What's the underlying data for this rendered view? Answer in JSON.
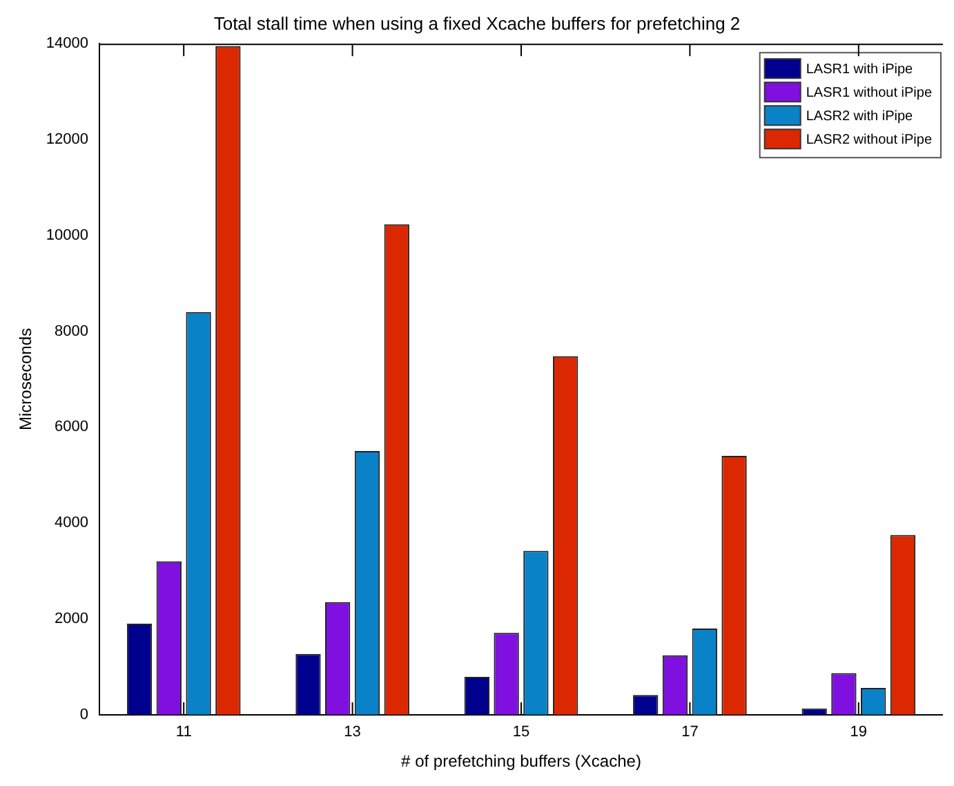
{
  "chart_data": {
    "type": "bar",
    "title": "Total stall time when using a fixed Xcache buffers for prefetching 2",
    "xlabel": "# of prefetching buffers (Xcache)",
    "ylabel": "Microseconds",
    "categories": [
      "11",
      "13",
      "15",
      "17",
      "19"
    ],
    "series": [
      {
        "name": "LASR1 with iPipe",
        "color": "#00008f",
        "values": [
          1900,
          1270,
          790,
          410,
          130
        ]
      },
      {
        "name": "LASR1 without iPipe",
        "color": "#7f10e0",
        "values": [
          3200,
          2350,
          1710,
          1240,
          870
        ]
      },
      {
        "name": "LASR2 with iPipe",
        "color": "#0a82c8",
        "values": [
          8400,
          5500,
          3420,
          1800,
          560
        ]
      },
      {
        "name": "LASR2 without iPipe",
        "color": "#dc2800",
        "values": [
          13950,
          10230,
          7480,
          5400,
          3750
        ]
      }
    ],
    "ylim": [
      0,
      14000
    ],
    "yticks": [
      0,
      2000,
      4000,
      6000,
      8000,
      10000,
      12000,
      14000
    ],
    "grid": false,
    "legend": "top right"
  }
}
